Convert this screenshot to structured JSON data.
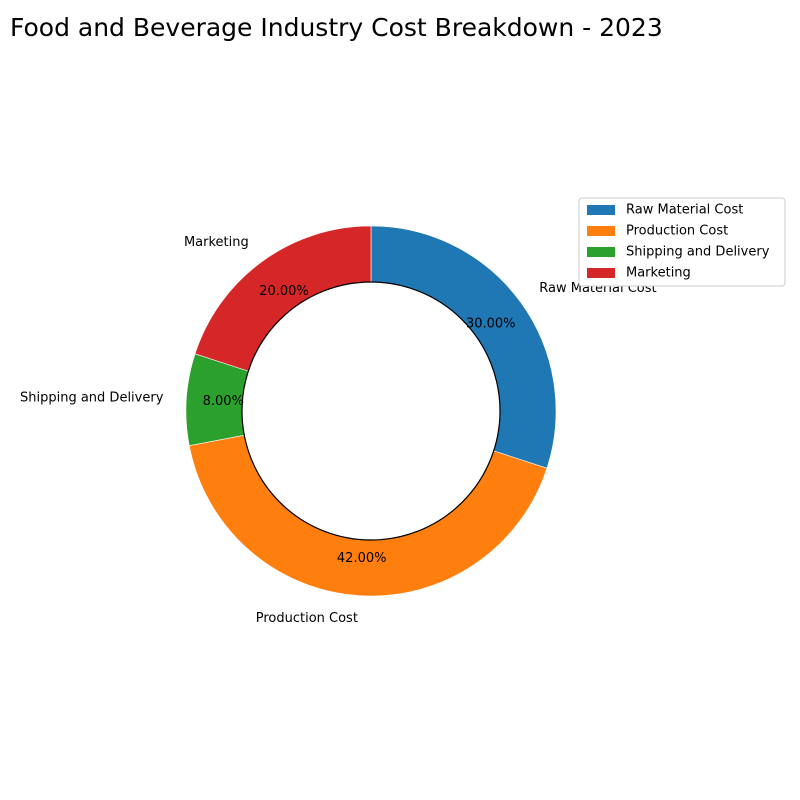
{
  "chart_data": {
    "type": "pie",
    "variant": "donut",
    "title": "Food and Beverage Industry Cost Breakdown - 2023",
    "categories": [
      "Raw Material Cost",
      "Production Cost",
      "Shipping and Delivery",
      "Marketing"
    ],
    "values": [
      30,
      42,
      8,
      20
    ],
    "percent_labels": [
      "30.00%",
      "42.00%",
      "8.00%",
      "20.00%"
    ],
    "colors": [
      "#1f77b4",
      "#ff7f0e",
      "#2ca02c",
      "#d62728"
    ],
    "start_angle": "top (12 o'clock)",
    "direction": "clockwise",
    "legend": {
      "position": "top-right",
      "entries": [
        "Raw Material Cost",
        "Production Cost",
        "Shipping and Delivery",
        "Marketing"
      ]
    }
  }
}
